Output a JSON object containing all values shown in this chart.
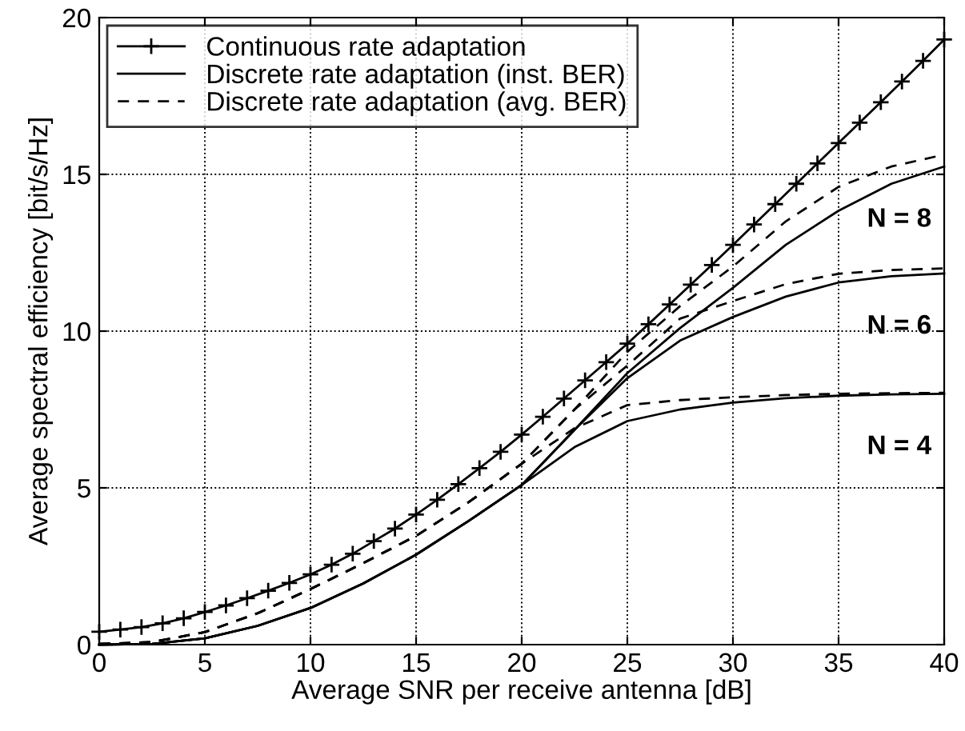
{
  "chart_data": {
    "type": "line",
    "xlabel": "Average SNR per receive antenna [dB]",
    "ylabel": "Average spectral efficiency [bit/s/Hz]",
    "xlim": [
      0,
      40
    ],
    "ylim": [
      0,
      20
    ],
    "xticks": [
      0,
      5,
      10,
      15,
      20,
      25,
      30,
      35,
      40
    ],
    "yticks": [
      0,
      5,
      10,
      15,
      20
    ],
    "grid": true,
    "legend": "top left",
    "series": [
      {
        "name": "Continuous rate adaptation",
        "color": "#000000",
        "marker": "cross",
        "line_style": "solid",
        "x": [
          0,
          1,
          2,
          3,
          4,
          5,
          6,
          7,
          8,
          9,
          10,
          11,
          12,
          13,
          14,
          15,
          16,
          17,
          18,
          19,
          20,
          21,
          22,
          23,
          24,
          25,
          26,
          27,
          28,
          29,
          30,
          31,
          32,
          33,
          34,
          35,
          36,
          37,
          38,
          39,
          40
        ],
        "values": [
          0.41,
          0.48,
          0.56,
          0.68,
          0.84,
          1.04,
          1.25,
          1.48,
          1.72,
          1.97,
          2.24,
          2.55,
          2.9,
          3.3,
          3.7,
          4.15,
          4.62,
          5.12,
          5.63,
          6.15,
          6.7,
          7.27,
          7.85,
          8.43,
          9.01,
          9.6,
          10.22,
          10.85,
          11.48,
          12.11,
          12.75,
          13.4,
          14.05,
          14.7,
          15.35,
          16.0,
          16.65,
          17.3,
          17.96,
          18.62,
          19.3
        ]
      },
      {
        "name": "Discrete rate adaptation (inst. BER)",
        "color": "#000000",
        "marker": "none",
        "line_style": "solid",
        "x": [
          0,
          2.5,
          5,
          7.5,
          10,
          12.5,
          15,
          17.5,
          20,
          22.5,
          25,
          27.5,
          30,
          32.5,
          35,
          37.5,
          40
        ],
        "values": [
          0.0,
          0.02,
          0.2,
          0.6,
          1.17,
          1.95,
          2.87,
          3.95,
          5.09,
          6.85,
          8.66,
          10.1,
          11.38,
          12.75,
          13.84,
          14.7,
          15.25
        ]
      },
      {
        "name": "Discrete rate adaptation (avg. BER)",
        "color": "#000000",
        "marker": "none",
        "line_style": "dashed",
        "x": [
          0,
          2.5,
          5,
          7.5,
          10,
          12.5,
          15,
          17.5,
          20,
          22.5,
          25,
          27.5,
          30,
          32.5,
          35,
          37.5,
          40
        ],
        "values": [
          0.02,
          0.08,
          0.4,
          1.0,
          1.77,
          2.6,
          3.47,
          4.55,
          5.77,
          7.5,
          9.34,
          10.8,
          12.06,
          13.5,
          14.6,
          15.25,
          15.63
        ]
      },
      {
        "color": "#000000",
        "marker": "none",
        "line_style": "solid",
        "x": [
          0,
          2.5,
          5,
          7.5,
          10,
          12.5,
          15,
          17.5,
          20,
          22.5,
          25,
          27.5,
          30,
          32.5,
          35,
          37.5,
          40
        ],
        "values": [
          0.0,
          0.02,
          0.2,
          0.6,
          1.17,
          1.95,
          2.87,
          3.95,
          5.09,
          6.85,
          8.5,
          9.7,
          10.45,
          11.1,
          11.55,
          11.75,
          11.84
        ]
      },
      {
        "color": "#000000",
        "marker": "none",
        "line_style": "dashed",
        "x": [
          0,
          2.5,
          5,
          7.5,
          10,
          12.5,
          15,
          17.5,
          20,
          22.5,
          25,
          27.5,
          30,
          32.5,
          35,
          37.5,
          40
        ],
        "values": [
          0.02,
          0.08,
          0.4,
          1.0,
          1.77,
          2.6,
          3.47,
          4.55,
          5.77,
          7.5,
          8.9,
          10.4,
          10.96,
          11.5,
          11.83,
          11.95,
          12.0
        ]
      },
      {
        "color": "#000000",
        "marker": "none",
        "line_style": "solid",
        "x": [
          0,
          2.5,
          5,
          7.5,
          10,
          12.5,
          15,
          17.5,
          20,
          22.5,
          25,
          27.5,
          30,
          32.5,
          35,
          37.5,
          40
        ],
        "values": [
          0.0,
          0.02,
          0.2,
          0.6,
          1.17,
          1.95,
          2.87,
          3.95,
          5.09,
          6.3,
          7.13,
          7.5,
          7.72,
          7.86,
          7.94,
          7.98,
          8.0
        ]
      },
      {
        "color": "#000000",
        "marker": "none",
        "line_style": "dashed",
        "x": [
          0,
          2.5,
          5,
          7.5,
          10,
          12.5,
          15,
          17.5,
          20,
          22.5,
          25,
          27.5,
          30,
          32.5,
          35,
          37.5,
          40
        ],
        "values": [
          0.02,
          0.08,
          0.4,
          1.0,
          1.77,
          2.6,
          3.47,
          4.55,
          5.77,
          6.9,
          7.64,
          7.8,
          7.89,
          7.96,
          8.0,
          8.02,
          8.03
        ]
      }
    ],
    "annotations": [
      "N = 8",
      "N = 6",
      "N = 4"
    ]
  }
}
